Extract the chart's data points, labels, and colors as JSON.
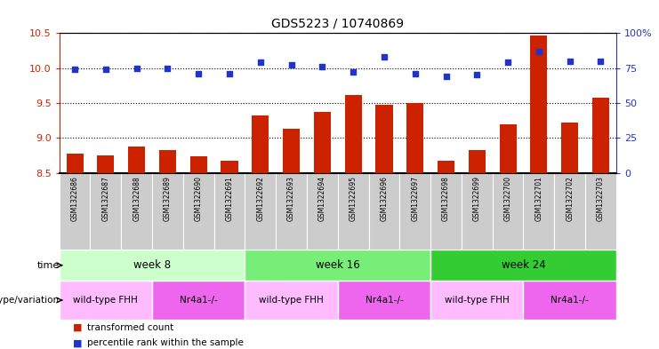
{
  "title": "GDS5223 / 10740869",
  "samples": [
    "GSM1322686",
    "GSM1322687",
    "GSM1322688",
    "GSM1322689",
    "GSM1322690",
    "GSM1322691",
    "GSM1322692",
    "GSM1322693",
    "GSM1322694",
    "GSM1322695",
    "GSM1322696",
    "GSM1322697",
    "GSM1322698",
    "GSM1322699",
    "GSM1322700",
    "GSM1322701",
    "GSM1322702",
    "GSM1322703"
  ],
  "transformed_count": [
    8.78,
    8.75,
    8.88,
    8.83,
    8.73,
    8.67,
    9.32,
    9.13,
    9.37,
    9.62,
    9.47,
    9.5,
    8.67,
    8.82,
    9.2,
    10.47,
    9.22,
    9.57
  ],
  "percentile_rank": [
    74,
    74,
    75,
    75,
    71,
    71,
    79,
    77,
    76,
    72,
    83,
    71,
    69,
    70,
    79,
    87,
    80,
    80
  ],
  "bar_color": "#cc2200",
  "dot_color": "#2233cc",
  "ylim_left": [
    8.5,
    10.5
  ],
  "ylim_right": [
    0,
    100
  ],
  "yticks_left": [
    8.5,
    9.0,
    9.5,
    10.0,
    10.5
  ],
  "yticks_right": [
    0,
    25,
    50,
    75,
    100
  ],
  "time_groups": [
    {
      "label": "week 8",
      "start": 0,
      "end": 6,
      "color": "#ccffcc"
    },
    {
      "label": "week 16",
      "start": 6,
      "end": 12,
      "color": "#77ee77"
    },
    {
      "label": "week 24",
      "start": 12,
      "end": 18,
      "color": "#33cc33"
    }
  ],
  "genotype_groups": [
    {
      "label": "wild-type FHH",
      "start": 0,
      "end": 3,
      "color": "#ffbbff"
    },
    {
      "label": "Nr4a1-/-",
      "start": 3,
      "end": 6,
      "color": "#ee66ee"
    },
    {
      "label": "wild-type FHH",
      "start": 6,
      "end": 9,
      "color": "#ffbbff"
    },
    {
      "label": "Nr4a1-/-",
      "start": 9,
      "end": 12,
      "color": "#ee66ee"
    },
    {
      "label": "wild-type FHH",
      "start": 12,
      "end": 15,
      "color": "#ffbbff"
    },
    {
      "label": "Nr4a1-/-",
      "start": 15,
      "end": 18,
      "color": "#ee66ee"
    }
  ],
  "time_label": "time",
  "genotype_label": "genotype/variation",
  "legend_bar": "transformed count",
  "legend_dot": "percentile rank within the sample",
  "tick_color_left": "#cc2200",
  "tick_color_right": "#2233cc",
  "bar_width": 0.55,
  "sample_bg_color": "#cccccc",
  "fig_width": 7.41,
  "fig_height": 3.93,
  "dpi": 100
}
